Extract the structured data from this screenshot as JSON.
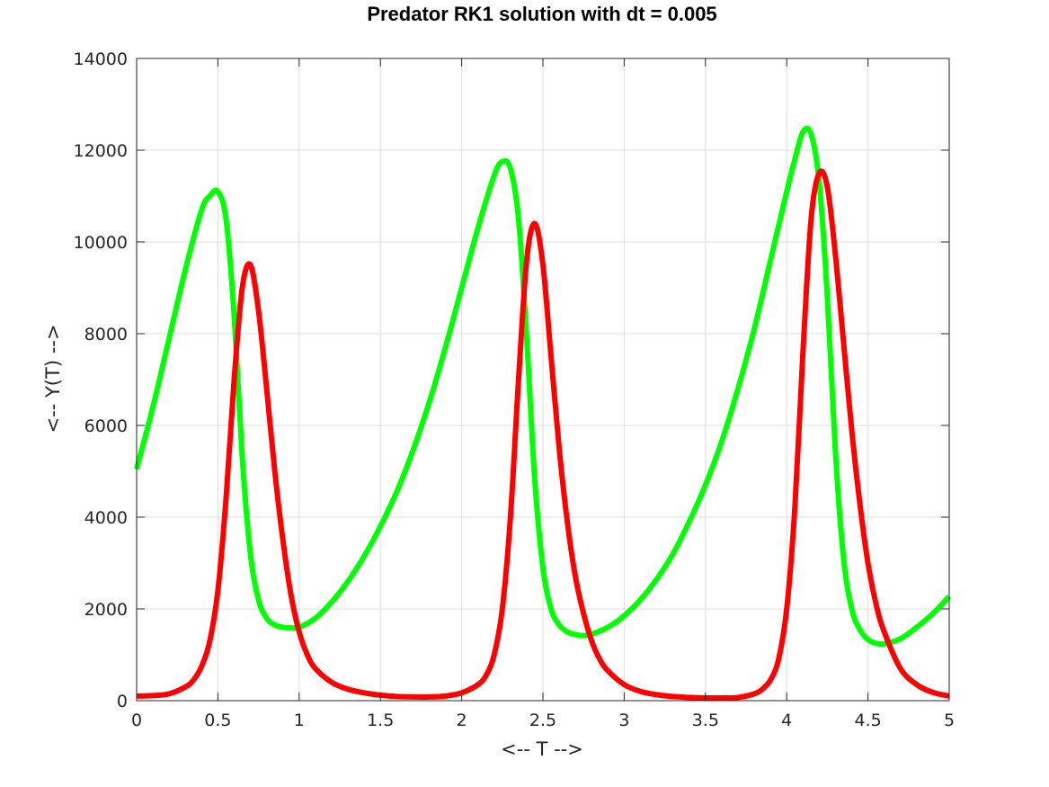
{
  "chart_data": {
    "type": "line",
    "title": "Predator RK1 solution with dt = 0.005",
    "xlabel": "<-- T -->",
    "ylabel": "<-- Y(T) -->",
    "xlim": [
      0,
      5
    ],
    "ylim": [
      0,
      14000
    ],
    "xticks": [
      0,
      0.5,
      1,
      1.5,
      2,
      2.5,
      3,
      3.5,
      4,
      4.5,
      5
    ],
    "xtick_labels": [
      "0",
      "0.5",
      "1",
      "1.5",
      "2",
      "2.5",
      "3",
      "3.5",
      "4",
      "4.5",
      "5"
    ],
    "yticks": [
      0,
      2000,
      4000,
      6000,
      8000,
      10000,
      12000,
      14000
    ],
    "ytick_labels": [
      "0",
      "2000",
      "4000",
      "6000",
      "8000",
      "10000",
      "12000",
      "14000"
    ],
    "grid": true,
    "series": [
      {
        "color": "#00ff00",
        "x": [
          0,
          0.1,
          0.2,
          0.3,
          0.4,
          0.45,
          0.5,
          0.55,
          0.6,
          0.65,
          0.7,
          0.75,
          0.8,
          0.85,
          0.9,
          0.95,
          1.0,
          1.1,
          1.2,
          1.3,
          1.4,
          1.5,
          1.6,
          1.7,
          1.8,
          1.9,
          2.0,
          2.1,
          2.2,
          2.25,
          2.3,
          2.35,
          2.4,
          2.45,
          2.5,
          2.55,
          2.6,
          2.65,
          2.7,
          2.75,
          2.8,
          2.9,
          3.0,
          3.1,
          3.2,
          3.3,
          3.4,
          3.5,
          3.6,
          3.7,
          3.8,
          3.9,
          4.0,
          4.05,
          4.1,
          4.15,
          4.2,
          4.25,
          4.3,
          4.35,
          4.4,
          4.45,
          4.5,
          4.55,
          4.6,
          4.7,
          4.8,
          4.9,
          5.0
        ],
        "y": [
          5050,
          6400,
          7900,
          9400,
          10700,
          11000,
          11100,
          10500,
          8400,
          5300,
          3200,
          2200,
          1800,
          1650,
          1600,
          1590,
          1600,
          1800,
          2150,
          2600,
          3150,
          3800,
          4550,
          5450,
          6500,
          7700,
          9000,
          10300,
          11450,
          11750,
          11600,
          10500,
          7900,
          4800,
          2900,
          2000,
          1650,
          1500,
          1440,
          1420,
          1450,
          1600,
          1850,
          2200,
          2650,
          3200,
          3900,
          4700,
          5650,
          6800,
          8100,
          9600,
          11100,
          11800,
          12400,
          12350,
          11300,
          8800,
          5400,
          3100,
          2000,
          1550,
          1330,
          1250,
          1240,
          1350,
          1600,
          1900,
          2270
        ]
      },
      {
        "color": "#ff0000",
        "x": [
          0,
          0.1,
          0.2,
          0.3,
          0.35,
          0.4,
          0.45,
          0.5,
          0.55,
          0.6,
          0.65,
          0.7,
          0.75,
          0.8,
          0.85,
          0.9,
          0.95,
          1.0,
          1.05,
          1.1,
          1.2,
          1.3,
          1.4,
          1.5,
          1.6,
          1.7,
          1.8,
          1.9,
          2.0,
          2.1,
          2.15,
          2.2,
          2.25,
          2.3,
          2.35,
          2.4,
          2.45,
          2.5,
          2.55,
          2.6,
          2.65,
          2.7,
          2.75,
          2.8,
          2.85,
          2.9,
          3.0,
          3.1,
          3.2,
          3.3,
          3.4,
          3.5,
          3.6,
          3.7,
          3.8,
          3.85,
          3.9,
          3.95,
          4.0,
          4.05,
          4.1,
          4.15,
          4.2,
          4.25,
          4.3,
          4.35,
          4.4,
          4.45,
          4.5,
          4.55,
          4.6,
          4.7,
          4.8,
          4.9,
          5.0
        ],
        "y": [
          100,
          110,
          150,
          300,
          450,
          750,
          1300,
          2400,
          4400,
          7000,
          9000,
          9500,
          8500,
          6800,
          5000,
          3500,
          2300,
          1500,
          1000,
          700,
          400,
          250,
          170,
          120,
          90,
          80,
          80,
          100,
          170,
          350,
          550,
          1000,
          2000,
          4000,
          7000,
          9600,
          10400,
          9500,
          7500,
          5500,
          3900,
          2700,
          1900,
          1300,
          900,
          650,
          350,
          200,
          130,
          90,
          70,
          60,
          60,
          70,
          150,
          250,
          450,
          900,
          2000,
          4200,
          7600,
          10500,
          11500,
          11200,
          9700,
          7800,
          5900,
          4300,
          3000,
          2100,
          1500,
          700,
          350,
          180,
          100
        ]
      }
    ]
  }
}
